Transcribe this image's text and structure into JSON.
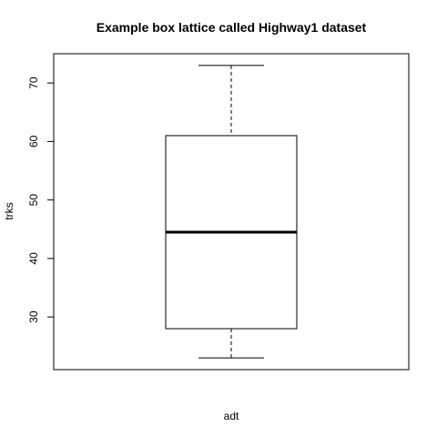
{
  "chart_data": {
    "type": "box",
    "title": "Example box lattice called Highway1 dataset",
    "xlabel": "adt",
    "ylabel": "trks",
    "ylim": [
      21,
      75
    ],
    "yticks": [
      30,
      40,
      50,
      60,
      70
    ],
    "grid": false,
    "box": {
      "min": 23,
      "q1": 28,
      "median": 44.5,
      "q3": 61,
      "max": 73
    },
    "colors": {
      "line": "#000000",
      "box_fill": "#ffffff"
    }
  }
}
